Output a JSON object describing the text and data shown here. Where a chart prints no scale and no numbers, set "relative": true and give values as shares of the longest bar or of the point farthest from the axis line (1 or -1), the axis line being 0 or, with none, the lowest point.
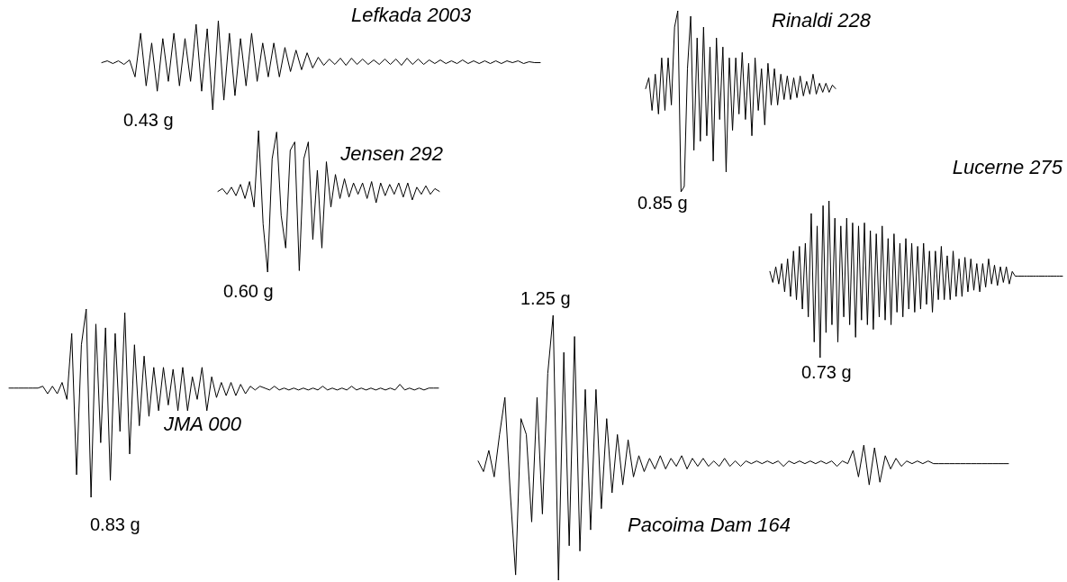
{
  "chart_data": [
    {
      "type": "line",
      "title": "Lefkada 2003",
      "relative": true,
      "color": "#000000",
      "annotations": [
        "0.43 g"
      ],
      "categories": [
        null,
        null,
        null,
        null,
        null,
        null,
        null,
        null,
        null,
        null,
        null,
        null,
        null,
        null,
        null,
        null,
        null,
        null,
        null,
        null,
        null,
        null,
        null,
        null,
        null,
        null,
        null,
        null,
        null,
        null,
        null,
        null,
        null,
        null,
        null,
        null,
        null,
        null,
        null,
        null,
        null,
        null,
        null,
        null,
        null,
        null,
        null,
        null,
        null,
        null,
        null,
        null,
        null,
        null,
        null,
        null,
        null,
        null,
        null,
        null,
        null,
        null,
        null,
        null,
        null,
        null,
        null,
        null,
        null,
        null,
        null,
        null,
        null,
        null,
        null,
        null,
        null,
        null,
        null,
        null
      ],
      "values": [
        0.53,
        0.55,
        0.52,
        0.55,
        0.51,
        0.56,
        0.37,
        0.86,
        0.27,
        0.75,
        0.21,
        0.8,
        0.32,
        0.86,
        0.27,
        0.8,
        0.32,
        0.96,
        0.21,
        0.91,
        0,
        1,
        0.11,
        0.86,
        0.16,
        0.8,
        0.27,
        0.86,
        0.32,
        0.75,
        0.37,
        0.75,
        0.37,
        0.7,
        0.43,
        0.67,
        0.45,
        0.64,
        0.47,
        0.59,
        0.5,
        0.57,
        0.51,
        0.58,
        0.5,
        0.58,
        0.51,
        0.57,
        0.51,
        0.56,
        0.51,
        0.57,
        0.51,
        0.57,
        0.5,
        0.58,
        0.51,
        0.57,
        0.51,
        0.56,
        0.52,
        0.56,
        0.52,
        0.55,
        0.52,
        0.56,
        0.52,
        0.55,
        0.52,
        0.55,
        0.52,
        0.55,
        0.52,
        0.55,
        0.53,
        0.55,
        0.52,
        0.54,
        0.53,
        0.53
      ]
    },
    {
      "type": "line",
      "title": "Jensen 292",
      "relative": true,
      "color": "#000000",
      "annotations": [
        "0.60 g"
      ],
      "categories": [
        null,
        null,
        null,
        null,
        null,
        null,
        null,
        null,
        null,
        null,
        null,
        null,
        null,
        null,
        null,
        null,
        null,
        null,
        null,
        null,
        null,
        null,
        null,
        null,
        null,
        null,
        null,
        null,
        null,
        null,
        null,
        null,
        null,
        null,
        null,
        null,
        null,
        null,
        null,
        null,
        null,
        null,
        null,
        null,
        null,
        null,
        null,
        null,
        null,
        null
      ],
      "values": [
        0.57,
        0.59,
        0.55,
        0.6,
        0.54,
        0.62,
        0.52,
        0.64,
        0.46,
        1,
        0.34,
        0,
        0.8,
        0.99,
        0.4,
        0.17,
        0.86,
        0.92,
        0.01,
        0.8,
        0.92,
        0.23,
        0.72,
        0.17,
        0.78,
        0.46,
        0.69,
        0.52,
        0.66,
        0.53,
        0.63,
        0.55,
        0.63,
        0.52,
        0.64,
        0.49,
        0.63,
        0.54,
        0.62,
        0.55,
        0.63,
        0.53,
        0.63,
        0.51,
        0.6,
        0.55,
        0.61,
        0.55,
        0.59,
        0.57
      ]
    },
    {
      "type": "line",
      "title": "Rinaldi 228",
      "relative": true,
      "color": "#000000",
      "annotations": [
        "0.85 g"
      ],
      "categories": [
        null,
        null,
        null,
        null,
        null,
        null,
        null,
        null,
        null,
        null,
        null,
        null,
        null,
        null,
        null,
        null,
        null,
        null,
        null,
        null,
        null,
        null,
        null,
        null,
        null,
        null,
        null,
        null,
        null,
        null,
        null,
        null,
        null,
        null,
        null,
        null,
        null,
        null,
        null,
        null,
        null,
        null,
        null,
        null,
        null,
        null,
        null,
        null,
        null,
        null,
        null,
        null,
        null,
        null,
        null,
        null,
        null,
        null,
        null,
        null
      ],
      "values": [
        0.57,
        0.63,
        0.45,
        0.65,
        0.43,
        0.74,
        0.45,
        0.74,
        0.48,
        0.91,
        1,
        0,
        0.03,
        0.68,
        0.97,
        0.23,
        0.85,
        0.28,
        0.91,
        0.31,
        0.8,
        0.17,
        0.85,
        0.4,
        0.8,
        0.11,
        0.74,
        0.34,
        0.74,
        0.43,
        0.77,
        0.4,
        0.71,
        0.31,
        0.74,
        0.45,
        0.68,
        0.37,
        0.71,
        0.48,
        0.68,
        0.48,
        0.65,
        0.51,
        0.64,
        0.51,
        0.63,
        0.52,
        0.64,
        0.53,
        0.61,
        0.54,
        0.65,
        0.54,
        0.6,
        0.55,
        0.6,
        0.55,
        0.59,
        0.57
      ]
    },
    {
      "type": "line",
      "title": "Lucerne 275",
      "relative": true,
      "color": "#000000",
      "annotations": [
        "0.73 g"
      ],
      "categories": [
        null,
        null,
        null,
        null,
        null,
        null,
        null,
        null,
        null,
        null,
        null,
        null,
        null,
        null,
        null,
        null,
        null,
        null,
        null,
        null,
        null,
        null,
        null,
        null,
        null,
        null,
        null,
        null,
        null,
        null,
        null,
        null,
        null,
        null,
        null,
        null,
        null,
        null,
        null,
        null,
        null,
        null,
        null,
        null,
        null,
        null,
        null,
        null,
        null,
        null,
        null,
        null,
        null,
        null,
        null,
        null,
        null,
        null,
        null,
        null,
        null,
        null,
        null,
        null,
        null,
        null,
        null,
        null,
        null,
        null,
        null,
        null,
        null,
        null,
        null,
        null,
        null,
        null,
        null,
        null,
        null,
        null,
        null,
        null,
        null,
        null,
        null,
        null,
        null,
        null,
        null,
        null,
        null,
        null,
        null,
        null,
        null,
        null,
        null,
        null
      ],
      "values": [
        0.55,
        0.48,
        0.58,
        0.47,
        0.6,
        0.42,
        0.63,
        0.39,
        0.68,
        0.37,
        0.71,
        0.31,
        0.73,
        0.26,
        0.92,
        0.1,
        0.84,
        0,
        0.97,
        0.16,
        1,
        0.21,
        0.89,
        0.1,
        0.84,
        0.26,
        0.89,
        0.21,
        0.86,
        0.13,
        0.84,
        0.24,
        0.86,
        0.21,
        0.81,
        0.18,
        0.79,
        0.26,
        0.84,
        0.24,
        0.76,
        0.21,
        0.79,
        0.29,
        0.73,
        0.26,
        0.76,
        0.31,
        0.73,
        0.29,
        0.71,
        0.31,
        0.73,
        0.34,
        0.68,
        0.29,
        0.68,
        0.37,
        0.71,
        0.37,
        0.65,
        0.37,
        0.68,
        0.39,
        0.63,
        0.39,
        0.64,
        0.42,
        0.63,
        0.43,
        0.6,
        0.42,
        0.6,
        0.45,
        0.63,
        0.47,
        0.59,
        0.46,
        0.58,
        0.48,
        0.58,
        0.47,
        0.55,
        0.52,
        0.52,
        0.52,
        0.52,
        0.52,
        0.52,
        0.52,
        0.52,
        0.52,
        0.52,
        0.52,
        0.52,
        0.52,
        0.52,
        0.52,
        0.52,
        0.52
      ]
    },
    {
      "type": "line",
      "title": "JMA 000",
      "relative": true,
      "color": "#000000",
      "annotations": [
        "0.83 g"
      ],
      "categories": [
        null,
        null,
        null,
        null,
        null,
        null,
        null,
        null,
        null,
        null,
        null,
        null,
        null,
        null,
        null,
        null,
        null,
        null,
        null,
        null,
        null,
        null,
        null,
        null,
        null,
        null,
        null,
        null,
        null,
        null,
        null,
        null,
        null,
        null,
        null,
        null,
        null,
        null,
        null,
        null,
        null,
        null,
        null,
        null,
        null,
        null,
        null,
        null,
        null,
        null,
        null,
        null,
        null,
        null,
        null,
        null,
        null,
        null,
        null,
        null,
        null,
        null,
        null,
        null,
        null,
        null,
        null,
        null,
        null,
        null,
        null,
        null,
        null,
        null,
        null,
        null,
        null,
        null,
        null,
        null,
        null,
        null,
        null,
        null,
        null,
        null,
        null,
        null,
        null,
        null
      ],
      "values": [
        0.58,
        0.58,
        0.58,
        0.58,
        0.58,
        0.58,
        0.58,
        0.59,
        0.55,
        0.59,
        0.55,
        0.61,
        0.52,
        0.87,
        0.12,
        0.81,
        1,
        0,
        0.92,
        0.29,
        0.9,
        0.09,
        0.87,
        0.35,
        0.98,
        0.23,
        0.81,
        0.38,
        0.75,
        0.43,
        0.69,
        0.46,
        0.69,
        0.49,
        0.68,
        0.46,
        0.69,
        0.46,
        0.64,
        0.52,
        0.69,
        0.46,
        0.64,
        0.53,
        0.61,
        0.54,
        0.61,
        0.54,
        0.6,
        0.55,
        0.59,
        0.57,
        0.59,
        0.58,
        0.57,
        0.59,
        0.57,
        0.58,
        0.57,
        0.58,
        0.57,
        0.58,
        0.57,
        0.58,
        0.57,
        0.59,
        0.57,
        0.58,
        0.57,
        0.58,
        0.57,
        0.59,
        0.57,
        0.58,
        0.57,
        0.58,
        0.57,
        0.58,
        0.57,
        0.58,
        0.57,
        0.6,
        0.57,
        0.58,
        0.57,
        0.58,
        0.57,
        0.58,
        0.58,
        0.58
      ]
    },
    {
      "type": "line",
      "title": "Pacoima Dam 164",
      "relative": true,
      "color": "#000000",
      "annotations": [
        "1.25 g"
      ],
      "categories": [
        null,
        null,
        null,
        null,
        null,
        null,
        null,
        null,
        null,
        null,
        null,
        null,
        null,
        null,
        null,
        null,
        null,
        null,
        null,
        null,
        null,
        null,
        null,
        null,
        null,
        null,
        null,
        null,
        null,
        null,
        null,
        null,
        null,
        null,
        null,
        null,
        null,
        null,
        null,
        null,
        null,
        null,
        null,
        null,
        null,
        null,
        null,
        null,
        null,
        null,
        null,
        null,
        null,
        null,
        null,
        null,
        null,
        null,
        null,
        null,
        null,
        null,
        null,
        null,
        null,
        null,
        null,
        null,
        null,
        null,
        null,
        null,
        null,
        null,
        null,
        null,
        null,
        null,
        null,
        null,
        null,
        null,
        null,
        null,
        null,
        null,
        null,
        null,
        null,
        null,
        null,
        null,
        null,
        null,
        null,
        null,
        null,
        null,
        null,
        null
      ],
      "values": [
        0.45,
        0.41,
        0.49,
        0.39,
        0.55,
        0.69,
        0.33,
        0.02,
        0.61,
        0.55,
        0.22,
        0.69,
        0.25,
        0.78,
        1,
        0,
        0.86,
        0.13,
        0.92,
        0.11,
        0.72,
        0.19,
        0.72,
        0.27,
        0.61,
        0.33,
        0.55,
        0.36,
        0.53,
        0.39,
        0.47,
        0.41,
        0.46,
        0.42,
        0.47,
        0.42,
        0.46,
        0.43,
        0.47,
        0.42,
        0.46,
        0.43,
        0.46,
        0.43,
        0.45,
        0.43,
        0.46,
        0.43,
        0.45,
        0.43,
        0.45,
        0.44,
        0.45,
        0.44,
        0.45,
        0.44,
        0.45,
        0.43,
        0.45,
        0.44,
        0.45,
        0.44,
        0.45,
        0.44,
        0.45,
        0.44,
        0.45,
        0.43,
        0.45,
        0.44,
        0.49,
        0.39,
        0.51,
        0.36,
        0.5,
        0.37,
        0.47,
        0.42,
        0.46,
        0.43,
        0.45,
        0.44,
        0.45,
        0.44,
        0.45,
        0.44,
        0.44,
        0.44,
        0.44,
        0.44,
        0.44,
        0.44,
        0.44,
        0.44,
        0.44,
        0.44,
        0.44,
        0.44,
        0.44,
        0.44
      ]
    }
  ]
}
